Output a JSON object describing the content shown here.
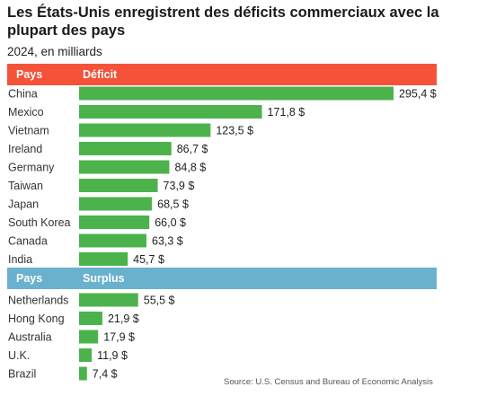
{
  "title": "Les États-Unis enregistrent des déficits commerciaux avec la plupart des pays",
  "subtitle": "2024, en milliards",
  "colors": {
    "deficit_header": "#f4533a",
    "surplus_header": "#6ab1cd",
    "bar": "#4cb34c"
  },
  "chart_data": [
    {
      "type": "bar",
      "orientation": "horizontal",
      "header_left": "Pays",
      "header_right": "Déficit",
      "categories": [
        "China",
        "Mexico",
        "Vietnam",
        "Ireland",
        "Germany",
        "Taiwan",
        "Japan",
        "South Korea",
        "Canada",
        "India"
      ],
      "values": [
        295.4,
        171.8,
        123.5,
        86.7,
        84.8,
        73.9,
        68.5,
        66.0,
        63.3,
        45.7
      ],
      "value_labels": [
        "295,4 $",
        "171,8 $",
        "123,5 $",
        "86,7 $",
        "84,8 $",
        "73,9 $",
        "68,5 $",
        "66,0 $",
        "63,3 $",
        "45,7 $"
      ]
    },
    {
      "type": "bar",
      "orientation": "horizontal",
      "header_left": "Pays",
      "header_right": "Surplus",
      "categories": [
        "Netherlands",
        "Hong Kong",
        "Australia",
        "U.K.",
        "Brazil"
      ],
      "values": [
        55.5,
        21.9,
        17.9,
        11.9,
        7.4
      ],
      "value_labels": [
        "55,5 $",
        "21,9 $",
        "17,9 $",
        "11,9 $",
        "7,4 $"
      ]
    }
  ],
  "source": "Source: U.S. Census and Bureau of Economic Analysis"
}
